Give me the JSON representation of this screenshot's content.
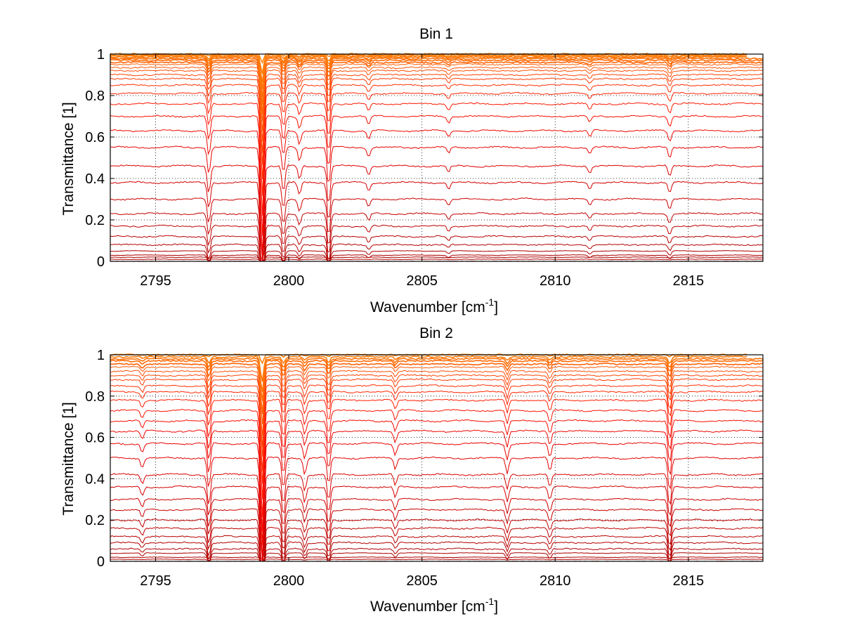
{
  "chart_data": [
    {
      "type": "line",
      "title": "Bin 1",
      "xlabel_base": "Wavenumber [cm",
      "xlabel_sup": "-1",
      "xlabel_close": "]",
      "ylabel": "Transmittance [1]",
      "xlim": [
        2793.3,
        2817.8
      ],
      "ylim": [
        0,
        1
      ],
      "xticks": [
        2795,
        2800,
        2805,
        2810,
        2815
      ],
      "xtick_labels": [
        "2795",
        "2800",
        "2805",
        "2810",
        "2815"
      ],
      "yticks": [
        0,
        0.2,
        0.4,
        0.6,
        0.8,
        1
      ],
      "ytick_labels": [
        "0",
        "0.2",
        "0.4",
        "0.6",
        "0.8",
        "1"
      ],
      "grid": true,
      "series_count": 30,
      "baseline_levels": [
        0.0,
        0.01,
        0.02,
        0.03,
        0.05,
        0.08,
        0.12,
        0.17,
        0.23,
        0.3,
        0.38,
        0.46,
        0.55,
        0.63,
        0.7,
        0.76,
        0.81,
        0.85,
        0.88,
        0.9,
        0.92,
        0.935,
        0.95,
        0.96,
        0.97,
        0.978,
        0.985,
        0.99,
        0.995,
        1.0
      ],
      "absorption_lines": [
        {
          "x": 2797.0,
          "depth": 0.12
        },
        {
          "x": 2799.0,
          "depth": 0.6
        },
        {
          "x": 2799.8,
          "depth": 0.12
        },
        {
          "x": 2800.4,
          "depth": 0.06
        },
        {
          "x": 2801.5,
          "depth": 0.18
        },
        {
          "x": 2803.0,
          "depth": 0.04
        },
        {
          "x": 2806.0,
          "depth": 0.03
        },
        {
          "x": 2811.3,
          "depth": 0.03
        },
        {
          "x": 2814.3,
          "depth": 0.05
        }
      ]
    },
    {
      "type": "line",
      "title": "Bin 2",
      "xlabel_base": "Wavenumber [cm",
      "xlabel_sup": "-1",
      "xlabel_close": "]",
      "ylabel": "Transmittance [1]",
      "xlim": [
        2793.3,
        2817.8
      ],
      "ylim": [
        0,
        1
      ],
      "xticks": [
        2795,
        2800,
        2805,
        2810,
        2815
      ],
      "xtick_labels": [
        "2795",
        "2800",
        "2805",
        "2810",
        "2815"
      ],
      "yticks": [
        0,
        0.2,
        0.4,
        0.6,
        0.8,
        1
      ],
      "ytick_labels": [
        "0",
        "0.2",
        "0.4",
        "0.6",
        "0.8",
        "1"
      ],
      "grid": true,
      "series_count": 30,
      "baseline_levels": [
        0.0,
        0.01,
        0.02,
        0.04,
        0.06,
        0.09,
        0.12,
        0.16,
        0.2,
        0.25,
        0.3,
        0.36,
        0.42,
        0.5,
        0.57,
        0.63,
        0.68,
        0.73,
        0.78,
        0.82,
        0.85,
        0.88,
        0.9,
        0.92,
        0.94,
        0.955,
        0.97,
        0.98,
        0.99,
        1.0
      ],
      "absorption_lines": [
        {
          "x": 2794.5,
          "depth": 0.04
        },
        {
          "x": 2797.0,
          "depth": 0.14
        },
        {
          "x": 2799.0,
          "depth": 0.55
        },
        {
          "x": 2799.8,
          "depth": 0.14
        },
        {
          "x": 2800.6,
          "depth": 0.07
        },
        {
          "x": 2801.5,
          "depth": 0.12
        },
        {
          "x": 2804.0,
          "depth": 0.05
        },
        {
          "x": 2808.2,
          "depth": 0.07
        },
        {
          "x": 2809.8,
          "depth": 0.06
        },
        {
          "x": 2814.3,
          "depth": 0.15
        }
      ]
    }
  ]
}
